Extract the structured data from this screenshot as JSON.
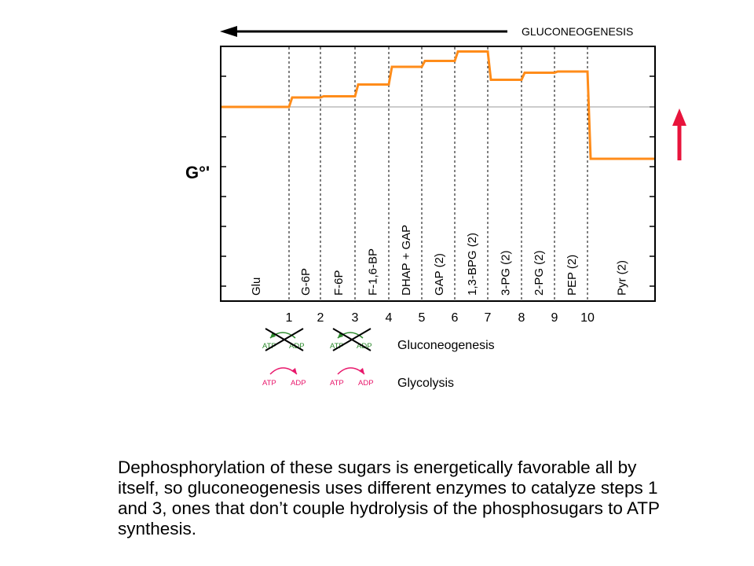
{
  "title_arrow_label": "GLUCONEOGENESIS",
  "y_axis_label": "G°'",
  "metabolites": [
    "Glu",
    "G-6P",
    "F-6P",
    "F-1,6-BP",
    "DHAP + GAP",
    "GAP (2)",
    "1,3-BPG (2)",
    "3-PG (2)",
    "2-PG (2)",
    "PEP (2)",
    "Pyr (2)"
  ],
  "steps": [
    "1",
    "2",
    "3",
    "4",
    "5",
    "6",
    "7",
    "8",
    "9",
    "10"
  ],
  "chart_data": {
    "type": "line",
    "x_categories": [
      "Glu",
      "G-6P",
      "F-6P",
      "F-1,6-BP",
      "DHAP + GAP",
      "GAP (2)",
      "1,3-BPG (2)",
      "3-PG (2)",
      "2-PG (2)",
      "PEP (2)",
      "Pyr (2)"
    ],
    "relative_free_energy": [
      0.0,
      0.4,
      0.45,
      0.95,
      1.7,
      1.95,
      2.35,
      1.15,
      1.45,
      1.5,
      -2.2
    ],
    "step_labels": [
      "1",
      "2",
      "3",
      "4",
      "5",
      "6",
      "7",
      "8",
      "9",
      "10"
    ],
    "ylabel": "G°'",
    "reference_level": 0.0,
    "line_color": "#ff8c1a"
  },
  "legend": {
    "gluconeogenesis_label": "Gluconeogenesis",
    "glycolysis_label": "Glycolysis",
    "atp": "ATP",
    "adp": "ADP",
    "green_color": "#2e8b2e",
    "pink_color": "#e8176b"
  },
  "caption_lines": [
    "Dephosphorylation of these sugars is energetically favorable all by",
    "itself, so gluconeogenesis uses different enzymes to catalyze steps 1",
    "and 3, ones that don’t couple hydrolysis of the phosphosugars to ATP",
    "synthesis."
  ],
  "colors": {
    "energy_line": "#ff8c1a",
    "up_arrow": "#e8143c",
    "axis": "#000000"
  }
}
